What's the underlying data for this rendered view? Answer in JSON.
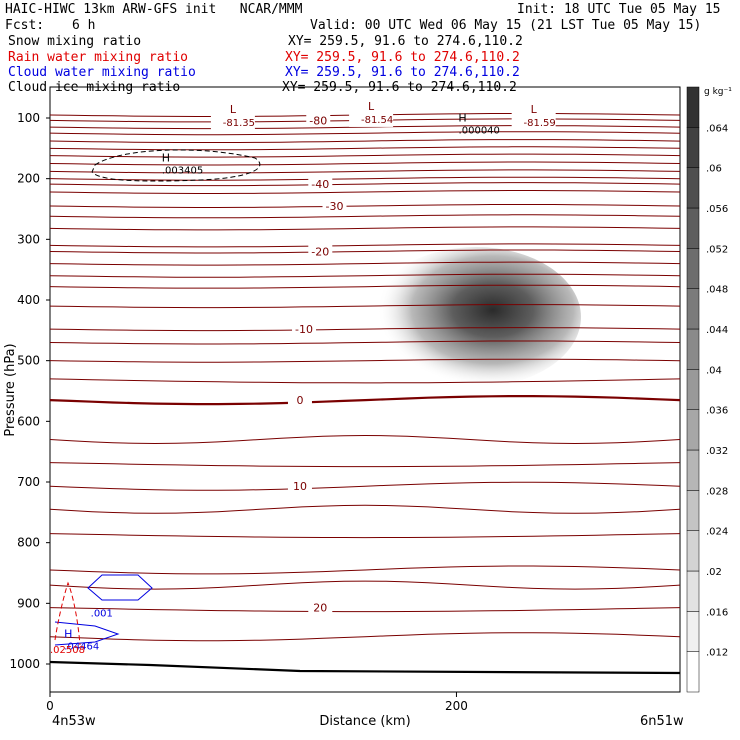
{
  "header": {
    "line1_left": "HAIC-HIWC 13km ARW-GFS init   NCAR/MMM",
    "line1_right": "Init: 18 UTC Tue 05 May 15",
    "fcst_label": "Fcst:",
    "fcst_value": "6 h",
    "valid": "Valid: 00 UTC Wed 06 May 15 (21 LST Tue 05 May 15)",
    "fields": [
      {
        "name": "Snow mixing ratio",
        "xy": "XY= 259.5, 91.6 to 274.6,110.2",
        "color": "#000000"
      },
      {
        "name": "Rain water mixing ratio",
        "xy": "XY= 259.5, 91.6 to 274.6,110.2",
        "color": "#e00000"
      },
      {
        "name": "Cloud water mixing ratio",
        "xy": "XY= 259.5, 91.6 to 274.6,110.2",
        "color": "#0000e0"
      },
      {
        "name": "Cloud ice mixing ratio",
        "xy": "XY= 259.5, 91.6 to 274.6,110.2",
        "color": "#000000"
      }
    ]
  },
  "chart_data": {
    "type": "contour cross-section",
    "ylabel": "Pressure (hPa)",
    "xlabel": "Distance (km)",
    "x_ticks": [
      0,
      200
    ],
    "y_ticks": [
      100,
      200,
      300,
      400,
      500,
      600,
      700,
      800,
      900,
      1000
    ],
    "xlim": [
      0,
      310
    ],
    "ylim": [
      1050,
      50
    ],
    "left_endpoint": "4n53w",
    "right_endpoint": "6n51w",
    "colorbar": {
      "unit": "g kg⁻¹",
      "ticks": [
        ".012",
        ".016",
        ".02",
        ".024",
        ".028",
        ".032",
        ".036",
        ".04",
        ".044",
        ".048",
        ".052",
        ".056",
        ".06",
        ".064"
      ]
    },
    "temperature_labels": [
      {
        "text": "-80",
        "x": 132,
        "p": 104
      },
      {
        "text": "-40",
        "x": 133,
        "p": 209
      },
      {
        "text": "-30",
        "x": 140,
        "p": 245
      },
      {
        "text": "-20",
        "x": 133,
        "p": 320
      },
      {
        "text": "-10",
        "x": 125,
        "p": 448
      },
      {
        "text": "0",
        "x": 123,
        "p": 565
      },
      {
        "text": "10",
        "x": 123,
        "p": 707
      },
      {
        "text": "20",
        "x": 133,
        "p": 907
      }
    ],
    "isotherm_pressures": [
      95,
      104,
      115,
      125,
      138,
      150,
      162,
      175,
      188,
      200,
      209,
      222,
      245,
      262,
      282,
      310,
      320,
      340,
      360,
      378,
      410,
      448,
      470,
      500,
      530,
      565,
      630,
      668,
      707,
      745,
      785,
      845,
      870,
      907,
      955
    ],
    "low_markers": [
      {
        "text": "L",
        "value": "-81.35",
        "x": 90,
        "p": 95
      },
      {
        "text": "L",
        "value": "-81.54",
        "x": 158,
        "p": 90
      },
      {
        "text": "L",
        "value": "-81.59",
        "x": 238,
        "p": 95
      }
    ],
    "high_markers": [
      {
        "text": "H",
        "value": ".000040",
        "x": 203,
        "p": 109,
        "color": "#000000"
      },
      {
        "text": "H",
        "value": ".003405",
        "x": 57,
        "p": 175,
        "color": "#000000"
      },
      {
        "text": "H",
        "value": ".04464",
        "x": 9,
        "p": 960,
        "color": "#0000e0"
      }
    ],
    "extra_labels": [
      {
        "text": ".001",
        "x": 20,
        "p": 922,
        "color": "#0000e0"
      },
      {
        "text": ".02508",
        "x": 0,
        "p": 982,
        "color": "#e00000"
      }
    ],
    "snow_max": {
      "x": 217,
      "p": 428,
      "value": 0.064
    },
    "terrain_pressure": 1000
  }
}
